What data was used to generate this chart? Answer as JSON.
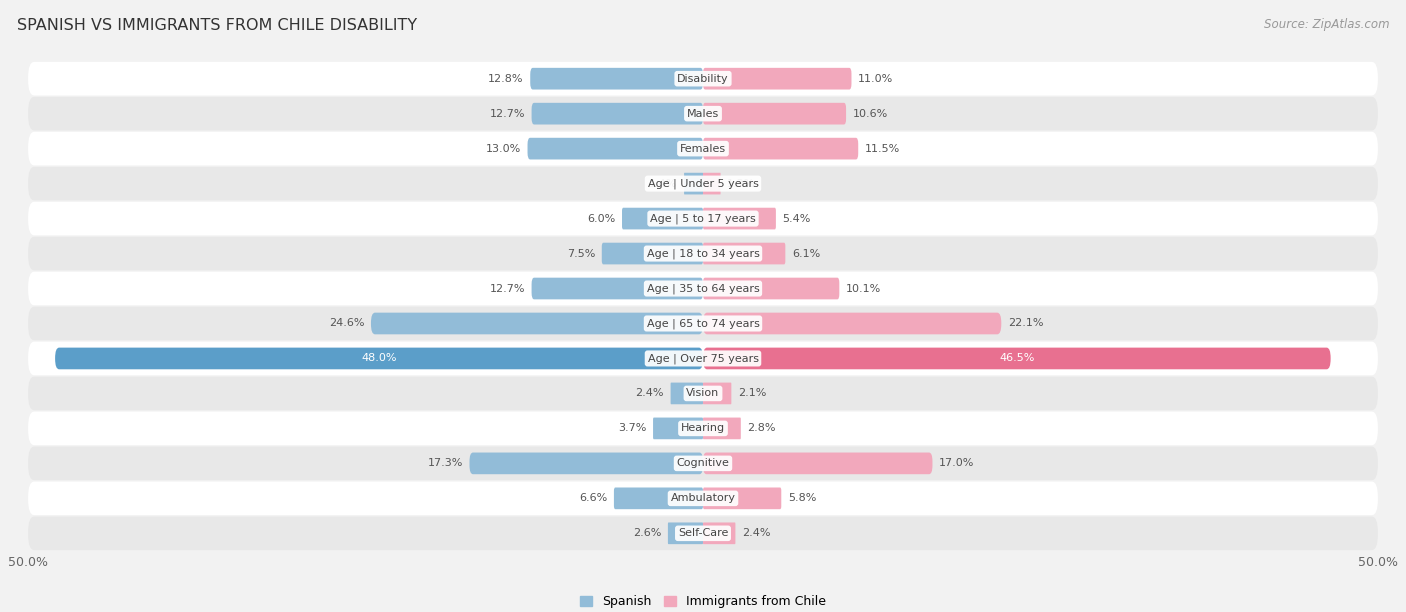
{
  "title": "SPANISH VS IMMIGRANTS FROM CHILE DISABILITY",
  "source": "Source: ZipAtlas.com",
  "categories": [
    "Disability",
    "Males",
    "Females",
    "Age | Under 5 years",
    "Age | 5 to 17 years",
    "Age | 18 to 34 years",
    "Age | 35 to 64 years",
    "Age | 65 to 74 years",
    "Age | Over 75 years",
    "Vision",
    "Hearing",
    "Cognitive",
    "Ambulatory",
    "Self-Care"
  ],
  "spanish_values": [
    12.8,
    12.7,
    13.0,
    1.4,
    6.0,
    7.5,
    12.7,
    24.6,
    48.0,
    2.4,
    3.7,
    17.3,
    6.6,
    2.6
  ],
  "chile_values": [
    11.0,
    10.6,
    11.5,
    1.3,
    5.4,
    6.1,
    10.1,
    22.1,
    46.5,
    2.1,
    2.8,
    17.0,
    5.8,
    2.4
  ],
  "spanish_color": "#92bcd8",
  "chile_color": "#f2a8bc",
  "spanish_highlight_color": "#5b9ec9",
  "chile_highlight_color": "#e87090",
  "axis_max": 50.0,
  "bar_height": 0.62,
  "background_color": "#f2f2f2",
  "row_color_even": "#ffffff",
  "row_color_odd": "#e8e8e8",
  "label_fontsize": 8.0,
  "title_fontsize": 11.5,
  "source_fontsize": 8.5,
  "legend_labels": [
    "Spanish",
    "Immigrants from Chile"
  ],
  "highlight_row": 8,
  "x_tick_labels": [
    "50.0%",
    "50.0%"
  ]
}
